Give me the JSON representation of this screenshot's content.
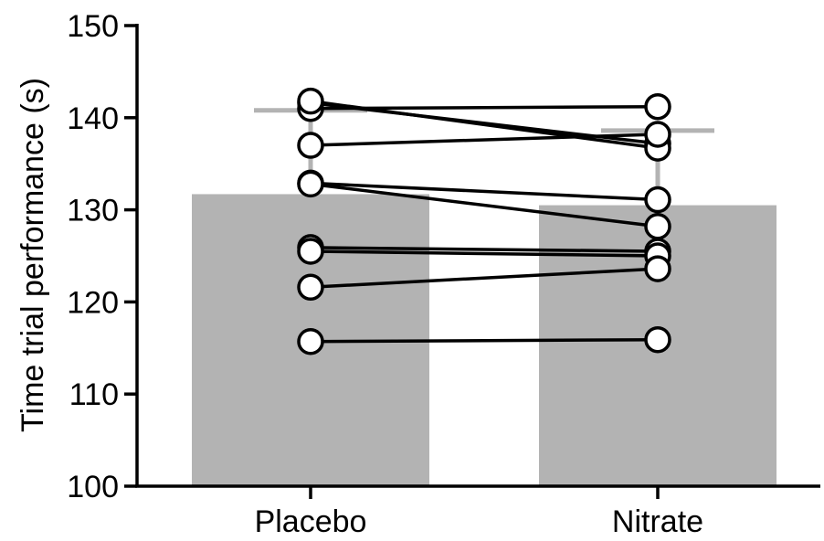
{
  "chart_data": {
    "type": "bar",
    "categories": [
      "Placebo",
      "Nitrate"
    ],
    "values": [
      131.7,
      130.5
    ],
    "error_upper": [
      140.8,
      138.6
    ],
    "ylabel": "Time trial performance (s)",
    "xlabel": "",
    "ylim": [
      100,
      150
    ],
    "yticks": [
      100,
      110,
      120,
      130,
      140,
      150
    ],
    "grid": false,
    "colors": {
      "bar": "#b3b3b3",
      "error": "#b3b3b3",
      "line": "#000000",
      "marker_fill": "#ffffff",
      "marker_edge": "#000000"
    },
    "paired": [
      {
        "placebo": 141.6,
        "nitrate": 137.2
      },
      {
        "placebo": 141.0,
        "nitrate": 141.2
      },
      {
        "placebo": 141.8,
        "nitrate": 136.7
      },
      {
        "placebo": 137.0,
        "nitrate": 138.2
      },
      {
        "placebo": 132.9,
        "nitrate": 131.1
      },
      {
        "placebo": 132.8,
        "nitrate": 128.2
      },
      {
        "placebo": 125.9,
        "nitrate": 125.5
      },
      {
        "placebo": 125.5,
        "nitrate": 125.0
      },
      {
        "placebo": 121.6,
        "nitrate": 123.6
      },
      {
        "placebo": 115.7,
        "nitrate": 115.9
      }
    ]
  }
}
